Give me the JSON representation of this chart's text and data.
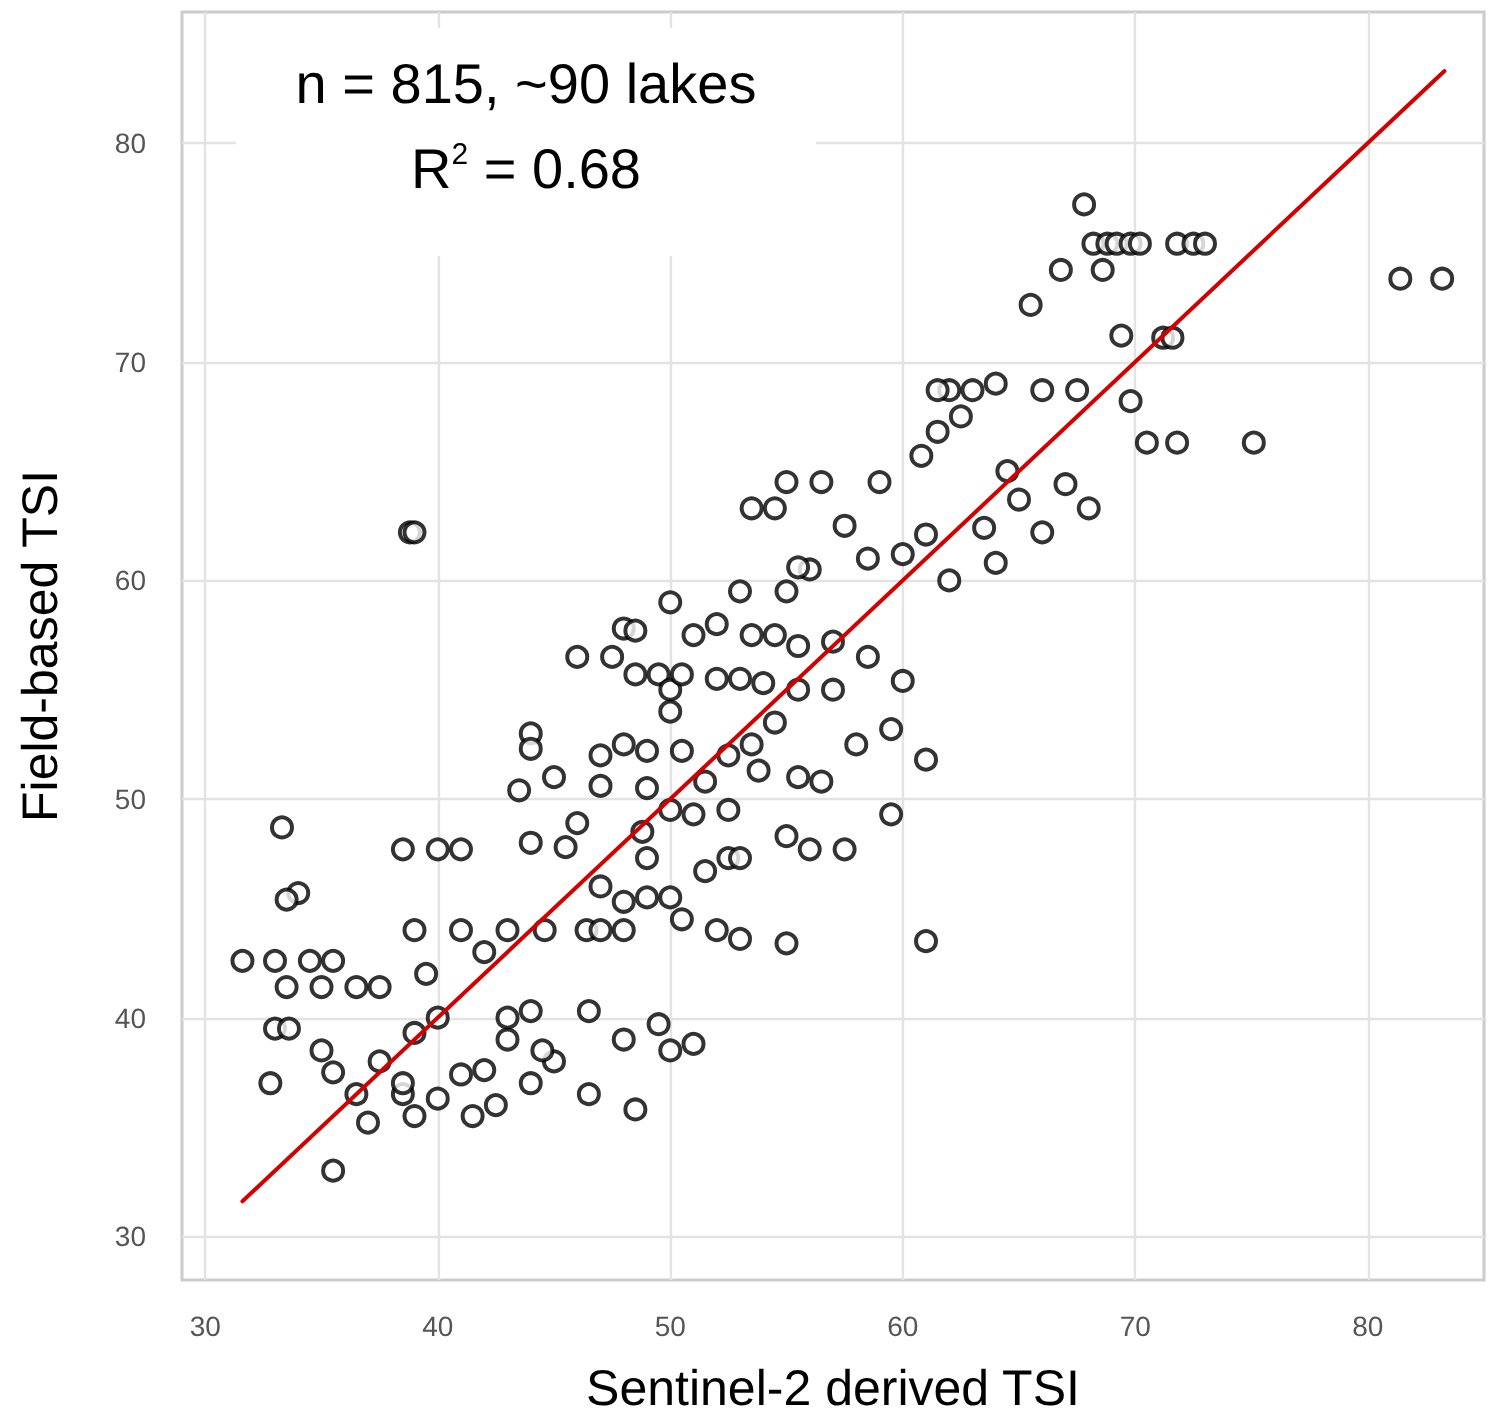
{
  "chart_data": {
    "type": "scatter",
    "xlabel": "Sentinel-2 derived TSI",
    "ylabel": "Field-based TSI",
    "annotations": [
      "n = 815, ~90 lakes",
      "R$^{2}$ = 0.68"
    ],
    "xlim": [
      29,
      85
    ],
    "ylim": [
      28,
      86
    ],
    "xticks": [
      30,
      40,
      50,
      60,
      70,
      80
    ],
    "yticks": [
      30,
      40,
      50,
      60,
      70,
      80
    ],
    "grid": true,
    "marker": "circle",
    "series": [
      {
        "color": "#000000",
        "x": [
          67.8,
          68.2,
          68.8,
          69.2,
          69.8,
          70.2,
          71.8,
          72.5,
          73,
          65.5,
          66.8,
          68.6,
          69.4,
          71.2,
          71.6,
          81.4,
          83.2,
          64,
          70.5,
          71.8,
          75.1,
          69.8,
          63,
          62,
          61.5,
          62.5,
          66,
          67.5,
          61.5,
          60.8,
          59,
          56.5,
          55,
          64.5,
          65,
          67,
          68,
          66,
          63.5,
          61,
          58.5,
          60,
          62,
          64,
          57,
          60,
          59.5,
          58,
          59.5,
          61,
          61,
          55,
          56,
          57.5,
          56.5,
          55.5,
          38.8,
          39,
          33.3,
          34,
          33.5,
          31.6,
          33,
          34.5,
          35.5,
          33.5,
          35,
          36.5,
          37.5,
          33,
          33.6,
          35,
          32.8,
          35.5,
          36.5,
          37,
          35.5,
          38.5,
          37.5,
          39,
          40,
          39,
          41.5,
          38.5,
          38.5,
          41,
          40,
          39,
          41,
          39.5,
          42,
          43,
          44,
          43.5,
          44,
          44,
          45,
          46,
          45.5,
          46.4,
          47,
          48,
          44.6,
          47,
          48,
          46.5,
          44,
          43,
          43,
          45,
          46.5,
          48,
          49.5,
          50,
          51,
          48.5,
          44,
          42,
          42.5,
          44.5,
          40,
          41,
          46,
          47.5,
          48,
          48.5,
          48.5,
          49.5,
          50,
          50.5,
          52,
          53,
          53.5,
          51,
          50,
          49,
          50.5,
          52.5,
          48,
          47,
          49,
          50,
          51,
          52.5,
          53.5,
          54.5,
          55.5,
          55.5,
          56,
          55,
          53,
          52,
          53.5,
          54.5,
          57.5,
          55.5,
          50,
          49,
          49,
          50,
          51.5,
          52.5,
          53,
          52,
          53,
          50.5,
          51.5,
          55,
          53.8,
          57,
          58.5,
          54.5,
          54,
          48.8,
          47
        ],
        "values": [
          77.2,
          75.4,
          75.4,
          75.4,
          75.4,
          75.4,
          75.4,
          75.4,
          75.4,
          72.6,
          74.2,
          74.2,
          71.2,
          71.1,
          71.1,
          73.8,
          73.8,
          69,
          66.3,
          66.3,
          66.3,
          68.2,
          68.7,
          68.7,
          68.7,
          67.5,
          68.7,
          68.7,
          66.8,
          65.7,
          64.5,
          64.5,
          64.5,
          65,
          63.7,
          64.4,
          63.3,
          62.2,
          62.4,
          62.1,
          61,
          61.2,
          60,
          60.8,
          57.2,
          55.4,
          53.2,
          52.5,
          49.3,
          51.8,
          43.5,
          43.4,
          47.7,
          47.7,
          50.8,
          51,
          62.2,
          62.2,
          48.7,
          45.7,
          45.4,
          42.6,
          42.6,
          42.6,
          42.6,
          41.4,
          41.4,
          41.4,
          41.4,
          39.5,
          39.5,
          38.5,
          37,
          37.5,
          36.5,
          35.2,
          33,
          36.5,
          38,
          39.3,
          40,
          35.5,
          35.5,
          37,
          47.7,
          47.7,
          47.7,
          44,
          44,
          42,
          43,
          44,
          48,
          50.4,
          53,
          52.3,
          51,
          48.9,
          47.8,
          44,
          44,
          44,
          44,
          46,
          45.3,
          40.3,
          40.3,
          40,
          39,
          38,
          36.5,
          39,
          39.7,
          38.5,
          38.8,
          35.8,
          37,
          37.6,
          36,
          38.5,
          36.3,
          37.4,
          56.5,
          56.5,
          57.8,
          57.7,
          55.7,
          55.7,
          55,
          55.7,
          55.5,
          55.5,
          57.5,
          57.5,
          59,
          52.2,
          52.2,
          52,
          52.5,
          52,
          50.5,
          49.5,
          49.3,
          49.5,
          52.5,
          53.5,
          55,
          57,
          60.5,
          59.5,
          59.5,
          58,
          63.3,
          63.3,
          62.5,
          60.6,
          54,
          47.3,
          45.5,
          45.5,
          46.7,
          47.3,
          47.3,
          44,
          43.6,
          44.5,
          50.8,
          48.3,
          51.3,
          55,
          56.5,
          57.5,
          55.3,
          48.5,
          50.6
        ]
      },
      {
        "type": "line",
        "color": "#d40000",
        "marker": "none",
        "line_style": "solid",
        "x": [
          31.6,
          83.3
        ],
        "values": [
          31.6,
          83.3
        ]
      }
    ]
  }
}
